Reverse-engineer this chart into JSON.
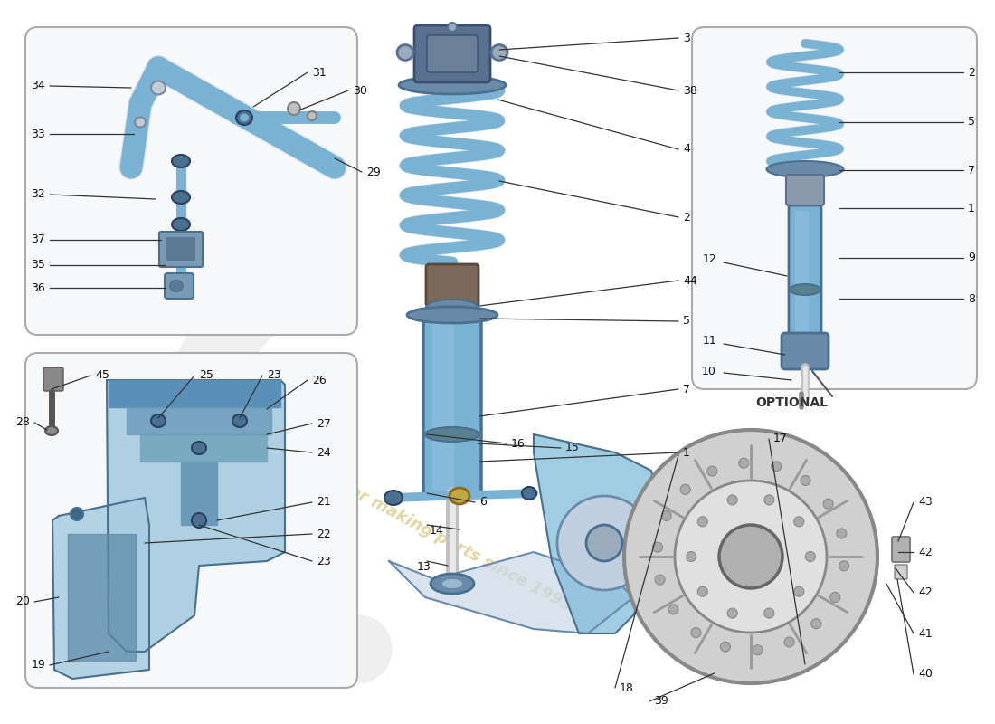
{
  "bg": "#ffffff",
  "box_fill": "#f7f8fa",
  "box_edge": "#aaaaaa",
  "blue_part": "#7ab2d3",
  "blue_dark": "#4a7090",
  "blue_light": "#a8cce0",
  "gray_part": "#8899aa",
  "line_col": "#333333",
  "label_col": "#111111",
  "watermark_col": "#d4c070",
  "opt_label": "OPTIONAL"
}
